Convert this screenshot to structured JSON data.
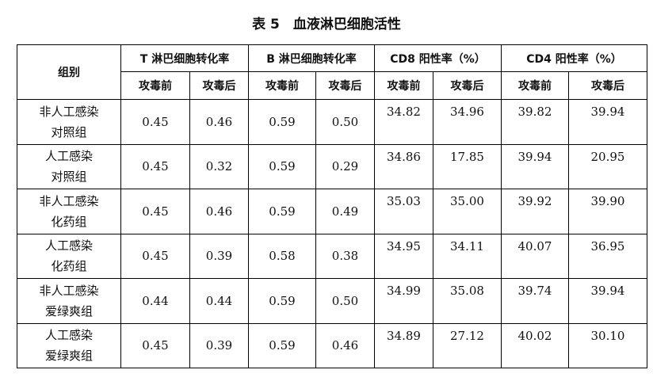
{
  "title": "表 5　血液淋巴细胞活性",
  "headers": {
    "group": "组别",
    "t_rate": "T 淋巴细胞转化率",
    "b_rate": "B 淋巴细胞转化率",
    "cd8": "CD8 阳性率（%）",
    "cd4": "CD4 阳性率（%）",
    "before": "攻毒前",
    "after": "攻毒后"
  },
  "rows": [
    {
      "group_line1": "非人工感染",
      "group_line2": "对照组",
      "t_before": "0.45",
      "t_after": "0.46",
      "b_before": "0.59",
      "b_after": "0.50",
      "cd8_before": "34.82",
      "cd8_after": "34.96",
      "cd4_before": "39.82",
      "cd4_after": "39.94"
    },
    {
      "group_line1": "人工感染",
      "group_line2": "对照组",
      "t_before": "0.45",
      "t_after": "0.32",
      "b_before": "0.59",
      "b_after": "0.29",
      "cd8_before": "34.86",
      "cd8_after": "17.85",
      "cd4_before": "39.94",
      "cd4_after": "20.95"
    },
    {
      "group_line1": "非人工感染",
      "group_line2": "化药组",
      "t_before": "0.45",
      "t_after": "0.46",
      "b_before": "0.59",
      "b_after": "0.49",
      "cd8_before": "35.03",
      "cd8_after": "35.00",
      "cd4_before": "39.92",
      "cd4_after": "39.90"
    },
    {
      "group_line1": "人工感染",
      "group_line2": "化药组",
      "t_before": "0.45",
      "t_after": "0.39",
      "b_before": "0.58",
      "b_after": "0.38",
      "cd8_before": "34.95",
      "cd8_after": "34.11",
      "cd4_before": "40.07",
      "cd4_after": "36.95"
    },
    {
      "group_line1": "非人工感染",
      "group_line2": "爱绿爽组",
      "t_before": "0.44",
      "t_after": "0.44",
      "b_before": "0.59",
      "b_after": "0.50",
      "cd8_before": "34.99",
      "cd8_after": "35.08",
      "cd4_before": "39.74",
      "cd4_after": "39.94"
    },
    {
      "group_line1": "人工感染",
      "group_line2": "爱绿爽组",
      "t_before": "0.45",
      "t_after": "0.39",
      "b_before": "0.59",
      "b_after": "0.46",
      "cd8_before": "34.89",
      "cd8_after": "27.12",
      "cd4_before": "40.02",
      "cd4_after": "30.10"
    }
  ]
}
